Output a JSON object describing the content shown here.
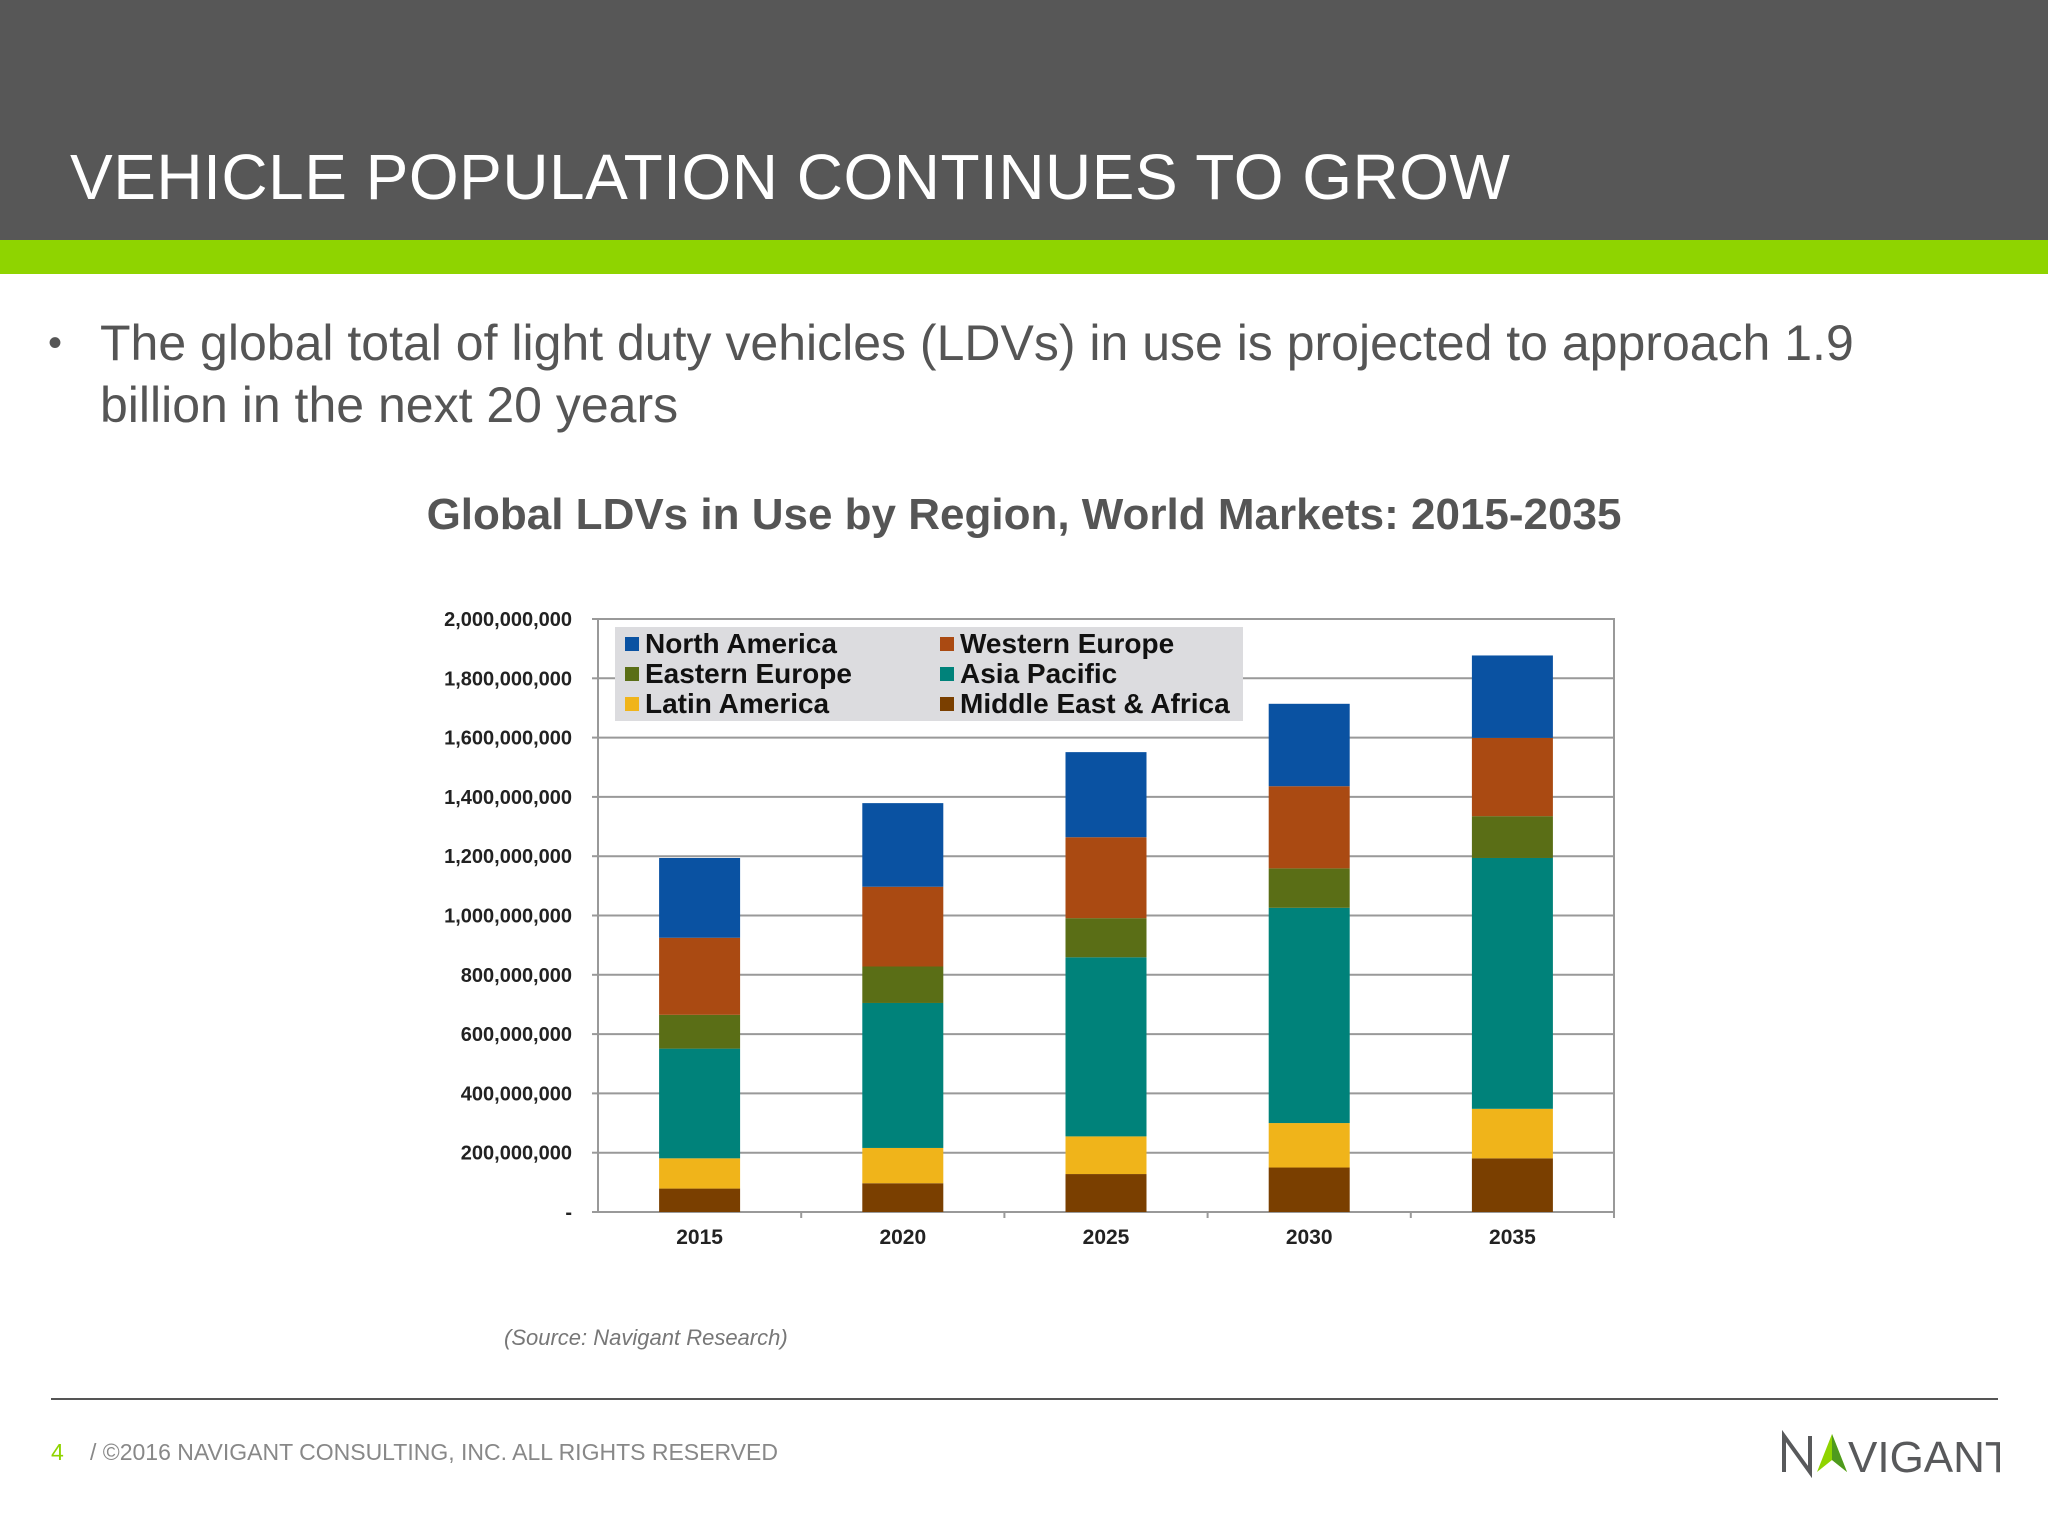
{
  "header": {
    "title": "VEHICLE POPULATION CONTINUES TO GROW"
  },
  "bullet": {
    "text": "The global total of light duty vehicles (LDVs) in use is projected to approach 1.9 billion in the next 20 years"
  },
  "chart_data": {
    "type": "bar",
    "stacked": true,
    "title": "Global LDVs in Use by Region, World Markets: 2015-2035",
    "xlabel": "",
    "ylabel": "",
    "categories": [
      "2015",
      "2020",
      "2025",
      "2030",
      "2035"
    ],
    "ylim": [
      0,
      2000000000
    ],
    "yticks": [
      0,
      200000000,
      400000000,
      600000000,
      800000000,
      1000000000,
      1200000000,
      1400000000,
      1600000000,
      1800000000,
      2000000000
    ],
    "ytick_labels": [
      "-",
      "200,000,000",
      "400,000,000",
      "600,000,000",
      "800,000,000",
      "1,000,000,000",
      "1,200,000,000",
      "1,400,000,000",
      "1,600,000,000",
      "1,800,000,000",
      "2,000,000,000"
    ],
    "grid": true,
    "legend_position": "top-left",
    "series": [
      {
        "name": "Middle East & Africa",
        "color": "#7a3f00",
        "values": [
          79000000,
          97000000,
          128000000,
          150000000,
          181000000
        ]
      },
      {
        "name": "Latin America",
        "color": "#f0b41a",
        "values": [
          102000000,
          119000000,
          127000000,
          150000000,
          167000000
        ]
      },
      {
        "name": "Asia Pacific",
        "color": "#00827a",
        "values": [
          370000000,
          489000000,
          604000000,
          726000000,
          846000000
        ]
      },
      {
        "name": "Eastern Europe",
        "color": "#5a6e16",
        "values": [
          114000000,
          123000000,
          132000000,
          133000000,
          141000000
        ]
      },
      {
        "name": "Western Europe",
        "color": "#aa4a12",
        "values": [
          260000000,
          269000000,
          273000000,
          277000000,
          264000000
        ]
      },
      {
        "name": "North America",
        "color": "#0a52a2",
        "values": [
          269000000,
          282000000,
          287000000,
          278000000,
          278000000
        ]
      }
    ],
    "legend_order": [
      "North America",
      "Western Europe",
      "Eastern Europe",
      "Asia Pacific",
      "Latin America",
      "Middle East & Africa"
    ]
  },
  "source": "(Source: Navigant Research)",
  "footer": {
    "page": "4",
    "copyright": "/ ©2016 NAVIGANT CONSULTING, INC. ALL RIGHTS RESERVED",
    "logo_text": "NAVIGANT"
  },
  "colors": {
    "header_bg": "#575757",
    "accent_green": "#8fd400"
  }
}
